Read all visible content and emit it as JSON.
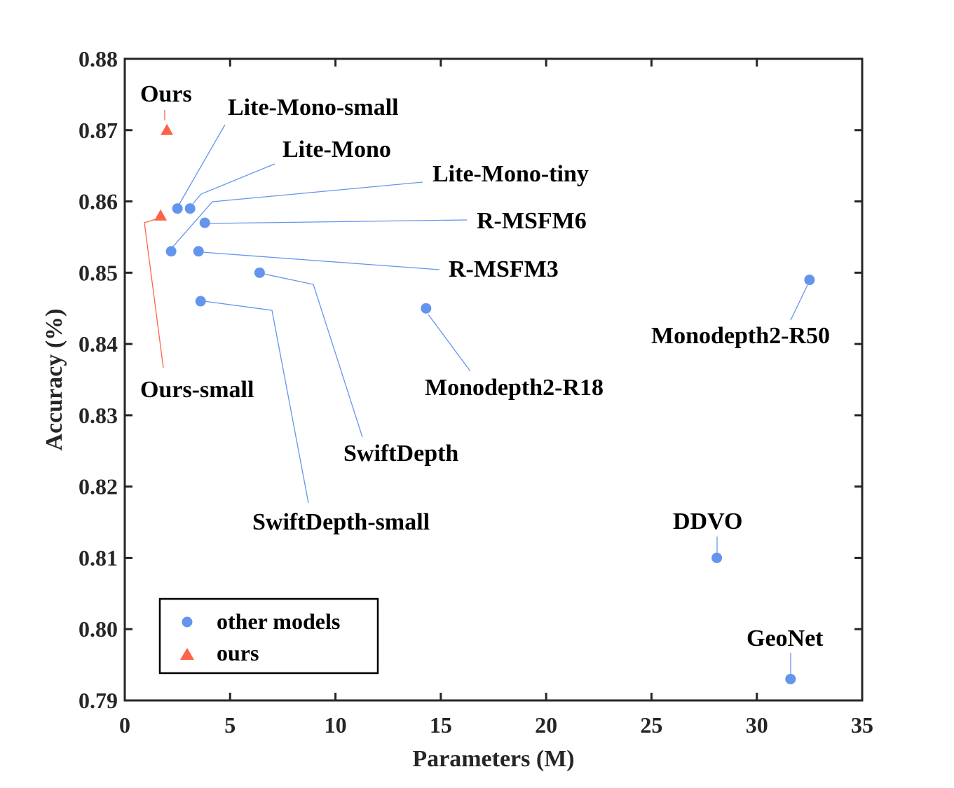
{
  "chart_data": {
    "type": "scatter",
    "title": "",
    "xlabel": "Parameters (M)",
    "ylabel": "Accuracy (%)",
    "xlim": [
      0,
      35
    ],
    "ylim": [
      0.79,
      0.88
    ],
    "x_ticks": [
      "0",
      "5",
      "10",
      "15",
      "20",
      "25",
      "30",
      "35"
    ],
    "y_ticks": [
      "0.79",
      "0.80",
      "0.81",
      "0.82",
      "0.83",
      "0.84",
      "0.85",
      "0.86",
      "0.87",
      "0.88"
    ],
    "grid": false,
    "legend_position": "bottom-left",
    "colors": {
      "other": "#6495ED",
      "ours": "#FF6347"
    },
    "series": [
      {
        "name": "other models",
        "marker": "circle",
        "points": [
          {
            "label": "Lite-Mono-small",
            "x": 2.5,
            "y": 0.859
          },
          {
            "label": "Lite-Mono",
            "x": 3.1,
            "y": 0.859
          },
          {
            "label": "Lite-Mono-tiny",
            "x": 2.2,
            "y": 0.853
          },
          {
            "label": "R-MSFM6",
            "x": 3.8,
            "y": 0.857
          },
          {
            "label": "R-MSFM3",
            "x": 3.5,
            "y": 0.853
          },
          {
            "label": "SwiftDepth",
            "x": 6.4,
            "y": 0.85
          },
          {
            "label": "SwiftDepth-small",
            "x": 3.6,
            "y": 0.846
          },
          {
            "label": "Monodepth2-R18",
            "x": 14.3,
            "y": 0.845
          },
          {
            "label": "Monodepth2-R50",
            "x": 32.5,
            "y": 0.849
          },
          {
            "label": "DDVO",
            "x": 28.1,
            "y": 0.81
          },
          {
            "label": "GeoNet",
            "x": 31.6,
            "y": 0.793
          }
        ]
      },
      {
        "name": "ours",
        "marker": "triangle",
        "points": [
          {
            "label": "Ours",
            "x": 2.0,
            "y": 0.87
          },
          {
            "label": "Ours-small",
            "x": 1.7,
            "y": 0.858
          }
        ]
      }
    ]
  }
}
